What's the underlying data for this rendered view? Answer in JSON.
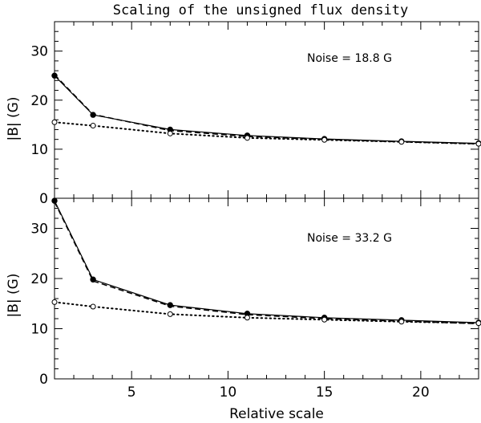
{
  "chart_data": {
    "type": "line",
    "title": "Scaling of the unsigned flux density",
    "xlabel": "Relative scale",
    "ylabel": "|B| (G)",
    "xlim": [
      1,
      23
    ],
    "xticks": [
      "5",
      "10",
      "15",
      "20"
    ],
    "ylim": [
      0,
      36
    ],
    "yticks": [
      "0",
      "10",
      "20",
      "30"
    ],
    "grid": false,
    "panels": [
      {
        "annotation": "Noise = 18.8 G",
        "x": [
          1,
          3,
          7,
          11,
          15,
          19,
          23
        ],
        "series": [
          {
            "style": "solid",
            "marker": "filled-circle",
            "values": [
              25.0,
              17.0,
              14.0,
              12.8,
              12.1,
              11.6,
              11.2
            ]
          },
          {
            "style": "dashed",
            "marker": "none",
            "values": [
              25.2,
              17.1,
              13.8,
              12.6,
              12.0,
              11.5,
              11.1
            ]
          },
          {
            "style": "dotted",
            "marker": "open-circle",
            "values": [
              15.5,
              14.8,
              13.2,
              12.3,
              11.9,
              11.5,
              11.1
            ]
          }
        ]
      },
      {
        "annotation": "Noise = 33.2 G",
        "x": [
          1,
          3,
          7,
          11,
          15,
          19,
          23
        ],
        "series": [
          {
            "style": "solid",
            "marker": "filled-circle",
            "values": [
              35.5,
              19.8,
              14.7,
              13.0,
              12.2,
              11.7,
              11.2
            ]
          },
          {
            "style": "dashed",
            "marker": "none",
            "values": [
              35.3,
              19.5,
              14.5,
              12.8,
              12.0,
              11.5,
              11.0
            ]
          },
          {
            "style": "dotted",
            "marker": "open-circle",
            "values": [
              15.3,
              14.4,
              12.9,
              12.2,
              11.8,
              11.4,
              11.1
            ]
          }
        ]
      }
    ]
  }
}
